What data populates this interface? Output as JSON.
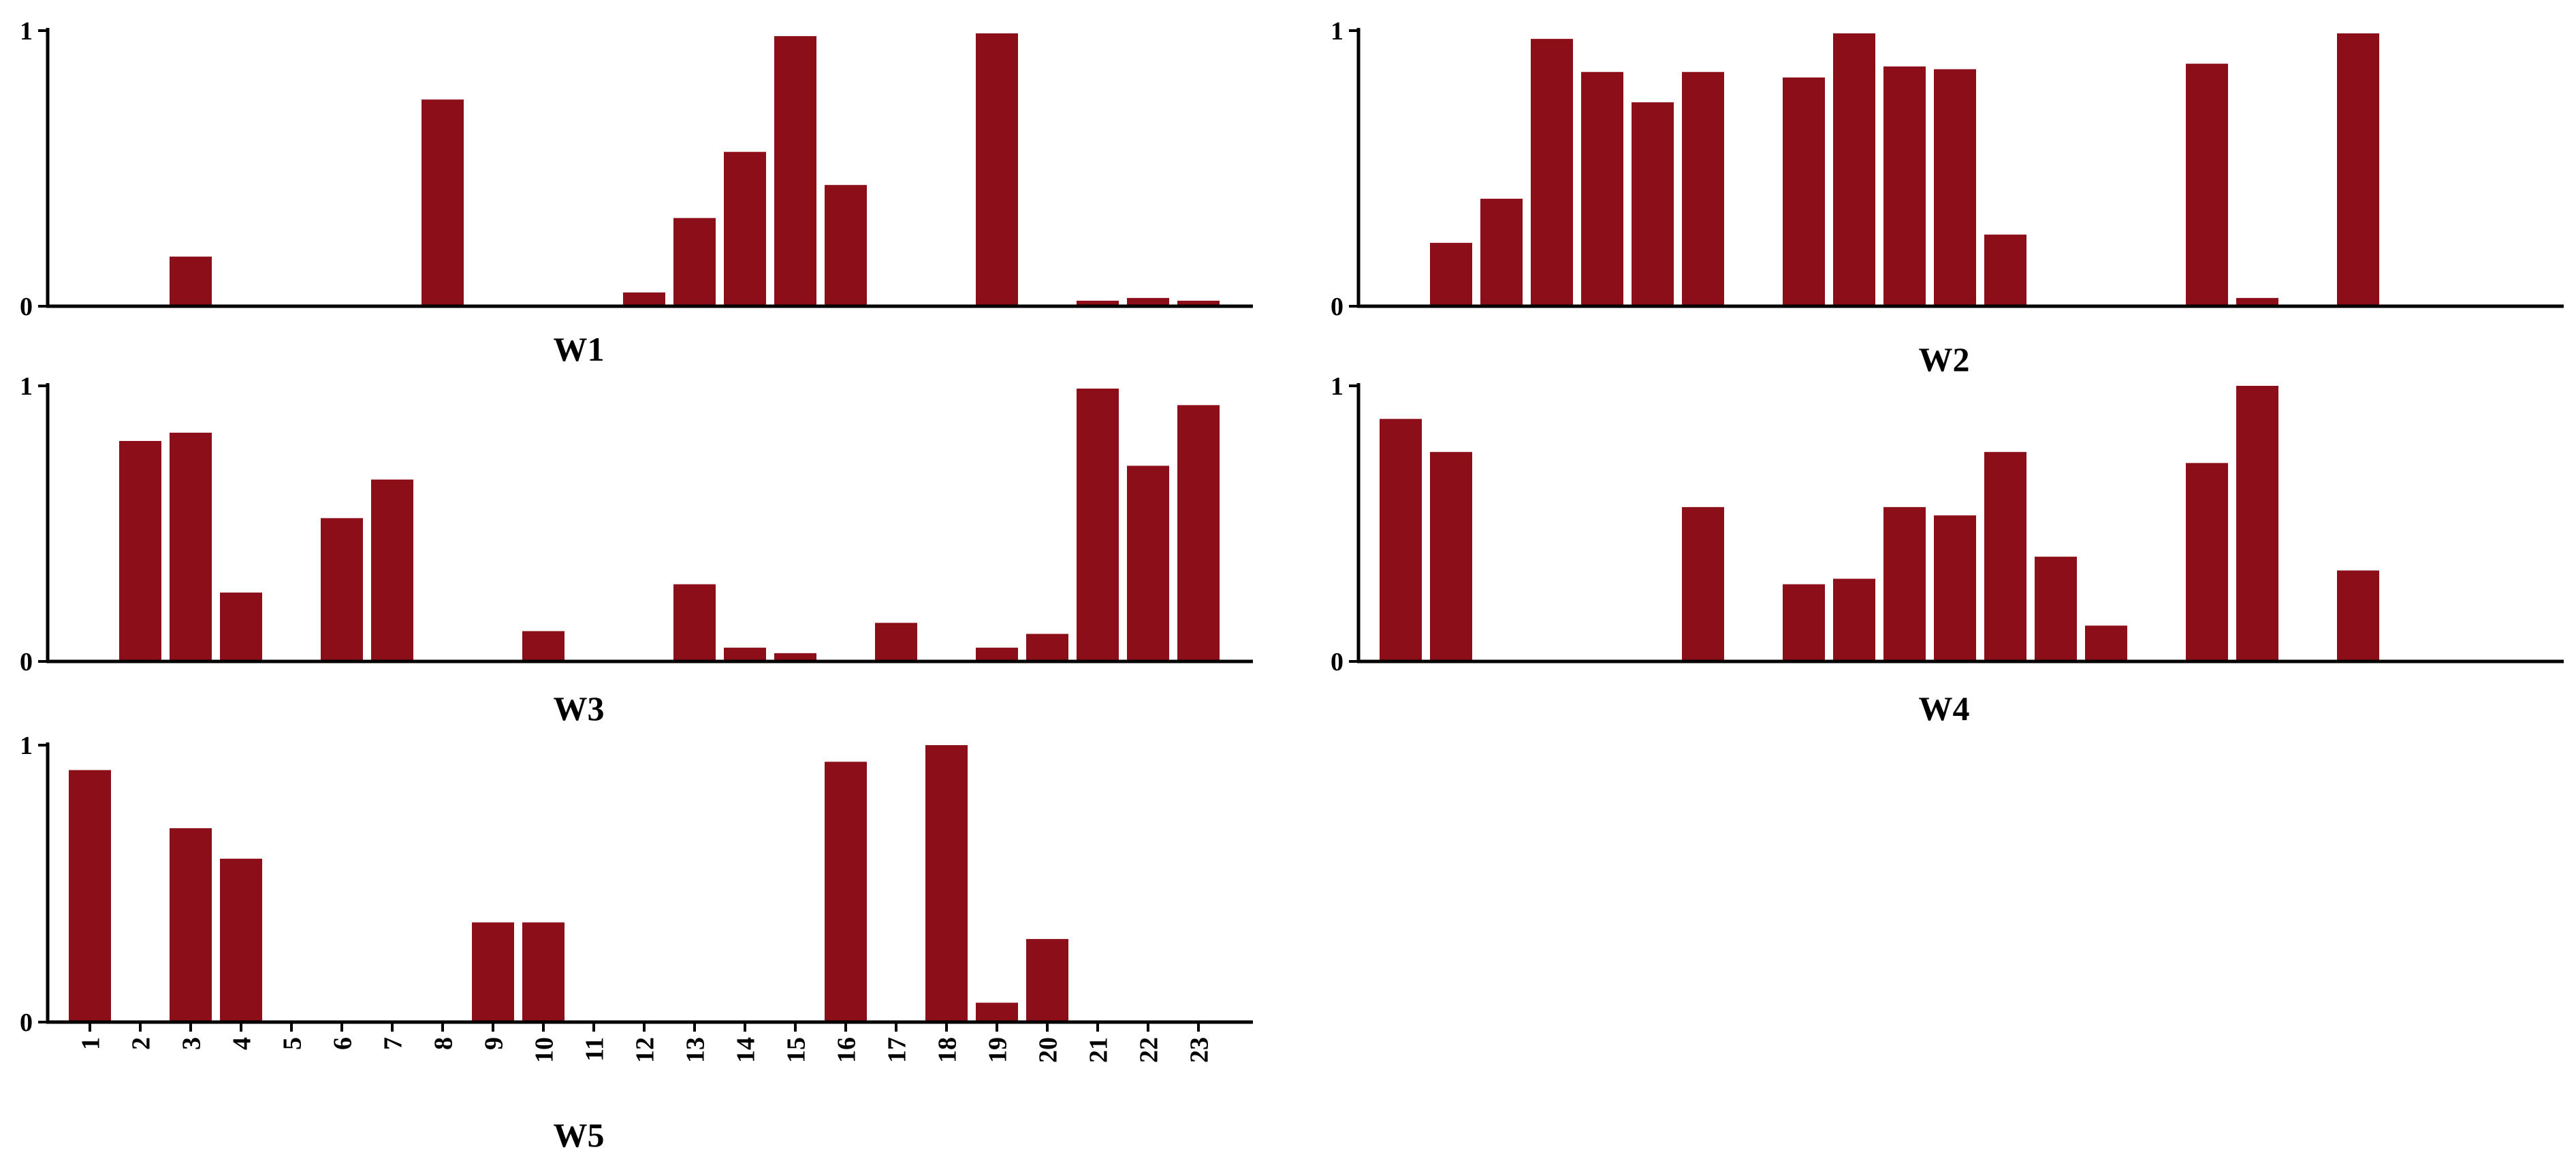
{
  "chart_data": [
    {
      "type": "bar",
      "title": "W1",
      "categories": [
        "1",
        "2",
        "3",
        "4",
        "5",
        "6",
        "7",
        "8",
        "9",
        "10",
        "11",
        "12",
        "13",
        "14",
        "15",
        "16",
        "17",
        "18",
        "19",
        "20",
        "21",
        "22",
        "23"
      ],
      "values": [
        0,
        0,
        0.18,
        0,
        0,
        0,
        0,
        0.75,
        0,
        0,
        0,
        0.05,
        0.32,
        0.56,
        0.98,
        0.44,
        0,
        0,
        0.99,
        0,
        0.02,
        0.03,
        0.02
      ],
      "ylim": [
        0,
        1
      ],
      "yticks": [
        "0",
        "1"
      ],
      "show_xtick_labels": false,
      "bar_color": "#8B0E18"
    },
    {
      "type": "bar",
      "title": "W2",
      "categories": [
        "1",
        "2",
        "3",
        "4",
        "5",
        "6",
        "7",
        "8",
        "9",
        "10",
        "11",
        "12",
        "13",
        "14",
        "15",
        "16",
        "17",
        "18",
        "19",
        "20",
        "21",
        "22",
        "23"
      ],
      "values": [
        0,
        0.23,
        0.39,
        0.97,
        0.85,
        0.74,
        0.85,
        0,
        0.83,
        0.99,
        0.87,
        0.86,
        0.26,
        0,
        0,
        0,
        0.88,
        0.03,
        0,
        0.99,
        0,
        0,
        0
      ],
      "ylim": [
        0,
        1
      ],
      "yticks": [
        "0",
        "1"
      ],
      "show_xtick_labels": false,
      "bar_color": "#8B0E18"
    },
    {
      "type": "bar",
      "title": "W3",
      "categories": [
        "1",
        "2",
        "3",
        "4",
        "5",
        "6",
        "7",
        "8",
        "9",
        "10",
        "11",
        "12",
        "13",
        "14",
        "15",
        "16",
        "17",
        "18",
        "19",
        "20",
        "21",
        "22",
        "23"
      ],
      "values": [
        0,
        0.8,
        0.83,
        0.25,
        0,
        0.52,
        0.66,
        0,
        0,
        0.11,
        0,
        0,
        0.28,
        0.05,
        0.03,
        0,
        0.14,
        0,
        0.05,
        0.1,
        0.99,
        0.71,
        0.93
      ],
      "ylim": [
        0,
        1
      ],
      "yticks": [
        "0",
        "1"
      ],
      "show_xtick_labels": false,
      "bar_color": "#8B0E18"
    },
    {
      "type": "bar",
      "title": "W4",
      "categories": [
        "1",
        "2",
        "3",
        "4",
        "5",
        "6",
        "7",
        "8",
        "9",
        "10",
        "11",
        "12",
        "13",
        "14",
        "15",
        "16",
        "17",
        "18",
        "19",
        "20",
        "21",
        "22",
        "23"
      ],
      "values": [
        0.88,
        0.76,
        0,
        0,
        0,
        0,
        0.56,
        0,
        0.28,
        0.3,
        0.56,
        0.53,
        0.76,
        0.38,
        0.13,
        0,
        0.72,
        1.0,
        0,
        0.33,
        0,
        0,
        0
      ],
      "ylim": [
        0,
        1
      ],
      "yticks": [
        "0",
        "1"
      ],
      "show_xtick_labels": false,
      "bar_color": "#8B0E18"
    },
    {
      "type": "bar",
      "title": "W5",
      "categories": [
        "1",
        "2",
        "3",
        "4",
        "5",
        "6",
        "7",
        "8",
        "9",
        "10",
        "11",
        "12",
        "13",
        "14",
        "15",
        "16",
        "17",
        "18",
        "19",
        "20",
        "21",
        "22",
        "23"
      ],
      "values": [
        0.91,
        0,
        0.7,
        0.59,
        0,
        0,
        0,
        0,
        0.36,
        0.36,
        0,
        0,
        0,
        0,
        0,
        0.94,
        0,
        1.0,
        0.07,
        0.3,
        0,
        0,
        0
      ],
      "ylim": [
        0,
        1
      ],
      "yticks": [
        "0",
        "1"
      ],
      "show_xtick_labels": true,
      "bar_color": "#8B0E18"
    }
  ]
}
